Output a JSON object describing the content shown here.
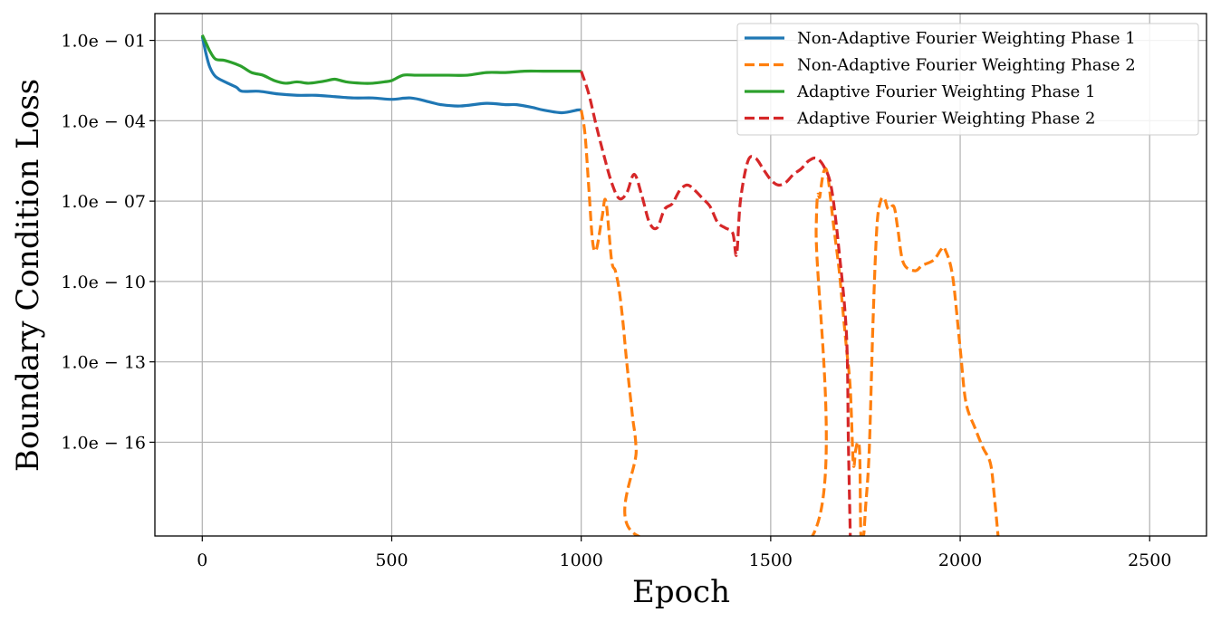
{
  "chart_data": {
    "type": "line",
    "title": "",
    "xlabel": "Epoch",
    "ylabel": "Boundary Condition Loss",
    "xlim": [
      -125,
      2650
    ],
    "ylim_log10": [
      -19.5,
      -0.0
    ],
    "xticks": [
      0,
      500,
      1000,
      1500,
      2000,
      2500
    ],
    "xtick_labels": [
      "0",
      "500",
      "1000",
      "1500",
      "2000",
      "2500"
    ],
    "yticks_log10": [
      -1,
      -4,
      -7,
      -10,
      -13,
      -16
    ],
    "ytick_labels": [
      "1.0e − 01",
      "1.0e − 04",
      "1.0e − 07",
      "1.0e − 10",
      "1.0e − 13",
      "1.0e − 16"
    ],
    "grid": true,
    "legend_position": "top-right",
    "series": [
      {
        "name": "Non-Adaptive Fourier Weighting Phase 1",
        "color": "#1f77b4",
        "dash": "solid",
        "x": [
          0,
          10,
          20,
          35,
          60,
          90,
          105,
          150,
          200,
          250,
          300,
          350,
          400,
          450,
          500,
          550,
          600,
          630,
          680,
          750,
          800,
          830,
          870,
          900,
          950,
          990,
          1000
        ],
        "log10_y": [
          -0.85,
          -1.5,
          -2.0,
          -2.35,
          -2.55,
          -2.75,
          -2.9,
          -2.9,
          -3.0,
          -3.05,
          -3.05,
          -3.1,
          -3.15,
          -3.15,
          -3.2,
          -3.15,
          -3.3,
          -3.4,
          -3.45,
          -3.35,
          -3.4,
          -3.4,
          -3.5,
          -3.6,
          -3.7,
          -3.6,
          -3.6
        ]
      },
      {
        "name": "Non-Adaptive Fourier Weighting Phase 2",
        "color": "#ff7f0e",
        "dash": "dashed",
        "x": [
          1000,
          1010,
          1020,
          1030,
          1040,
          1055,
          1065,
          1080,
          1090,
          1100,
          1110,
          1120,
          1135,
          1145,
          1150,
          1610,
          1620,
          1630,
          1640,
          1650,
          1665,
          1680,
          1690,
          1700,
          1710,
          1718,
          1724,
          1730,
          1735,
          1738,
          1745,
          1750,
          1760,
          1770,
          1780,
          1790,
          1800,
          1810,
          1825,
          1835,
          1850,
          1880,
          1900,
          1930,
          1950,
          1960,
          1980,
          2000,
          2015,
          2040,
          2060,
          2080,
          2090,
          2100
        ],
        "log10_y": [
          -3.6,
          -4.5,
          -6.5,
          -8.5,
          -8.8,
          -7.6,
          -7.0,
          -9.2,
          -9.6,
          -10.3,
          -11.5,
          -13.0,
          -15.0,
          -16.3,
          -19.5,
          -19.5,
          -8.0,
          -6.8,
          -5.9,
          -6.0,
          -7.8,
          -9.5,
          -11.0,
          -12.5,
          -14.0,
          -16.8,
          -16.3,
          -16.0,
          -16.5,
          -19.5,
          -19.5,
          -18.5,
          -16.3,
          -11.5,
          -8.0,
          -7.0,
          -6.9,
          -7.3,
          -7.2,
          -8.0,
          -9.3,
          -9.6,
          -9.4,
          -9.2,
          -8.8,
          -8.8,
          -9.8,
          -12.5,
          -14.5,
          -15.5,
          -16.2,
          -16.8,
          -18.0,
          -19.5
        ]
      },
      {
        "name": "Adaptive Fourier Weighting Phase 1",
        "color": "#2ca02c",
        "dash": "solid",
        "x": [
          0,
          10,
          20,
          35,
          60,
          100,
          130,
          160,
          190,
          220,
          250,
          280,
          310,
          330,
          350,
          380,
          420,
          450,
          480,
          500,
          530,
          560,
          600,
          650,
          700,
          750,
          800,
          850,
          900,
          950,
          1000
        ],
        "log10_y": [
          -0.8,
          -1.1,
          -1.4,
          -1.7,
          -1.75,
          -1.95,
          -2.2,
          -2.3,
          -2.5,
          -2.6,
          -2.55,
          -2.6,
          -2.55,
          -2.5,
          -2.45,
          -2.55,
          -2.6,
          -2.6,
          -2.55,
          -2.5,
          -2.3,
          -2.3,
          -2.3,
          -2.3,
          -2.3,
          -2.2,
          -2.2,
          -2.15,
          -2.15,
          -2.15,
          -2.15
        ]
      },
      {
        "name": "Adaptive Fourier Weighting Phase 2",
        "color": "#d62728",
        "dash": "dashed",
        "x": [
          1000,
          1020,
          1040,
          1060,
          1080,
          1100,
          1120,
          1140,
          1160,
          1180,
          1200,
          1220,
          1240,
          1260,
          1280,
          1300,
          1320,
          1340,
          1360,
          1380,
          1400,
          1410,
          1420,
          1440,
          1460,
          1480,
          1500,
          1520,
          1540,
          1560,
          1580,
          1600,
          1620,
          1640,
          1660,
          1680,
          1700,
          1705,
          1710
        ],
        "log10_y": [
          -2.15,
          -3.0,
          -4.2,
          -5.3,
          -6.3,
          -6.9,
          -6.7,
          -6.0,
          -6.8,
          -7.8,
          -8.0,
          -7.3,
          -7.1,
          -6.6,
          -6.4,
          -6.6,
          -6.9,
          -7.2,
          -7.8,
          -8.0,
          -8.2,
          -9.0,
          -7.0,
          -5.5,
          -5.4,
          -5.8,
          -6.2,
          -6.4,
          -6.3,
          -6.0,
          -5.8,
          -5.5,
          -5.4,
          -5.7,
          -6.5,
          -8.8,
          -12.0,
          -16.0,
          -19.5
        ]
      }
    ]
  }
}
